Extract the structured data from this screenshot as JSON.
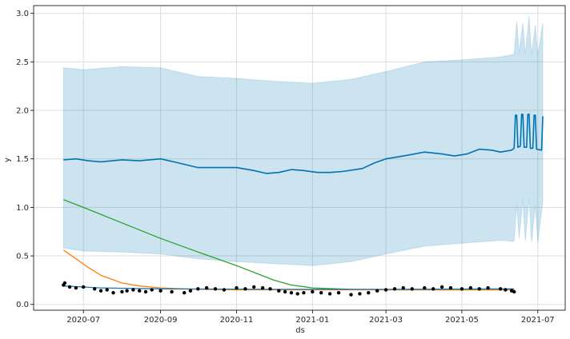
{
  "chart_data": {
    "type": "line",
    "xlabel": "ds",
    "ylabel": "y",
    "x_range": [
      "2020-05-22",
      "2021-07-23"
    ],
    "ylim": [
      -0.06,
      3.08
    ],
    "grid": true,
    "x_ticks": [
      {
        "date": "2020-07-01",
        "label": "2020-07"
      },
      {
        "date": "2020-09-01",
        "label": "2020-09"
      },
      {
        "date": "2020-11-01",
        "label": "2020-11"
      },
      {
        "date": "2021-01-01",
        "label": "2021-01"
      },
      {
        "date": "2021-03-01",
        "label": "2021-03"
      },
      {
        "date": "2021-05-01",
        "label": "2021-05"
      },
      {
        "date": "2021-07-01",
        "label": "2021-07"
      }
    ],
    "y_ticks": [
      {
        "value": 0.0,
        "label": "0.0"
      },
      {
        "value": 0.5,
        "label": "0.5"
      },
      {
        "value": 1.0,
        "label": "1.0"
      },
      {
        "value": 1.5,
        "label": "1.5"
      },
      {
        "value": 2.0,
        "label": "2.0"
      },
      {
        "value": 2.5,
        "label": "2.5"
      },
      {
        "value": 3.0,
        "label": "3.0"
      }
    ],
    "colors": {
      "forecast": "#0072B2",
      "interval": "#0072B2",
      "observed": "#000000",
      "orange_line": "#ff7f0e",
      "green_line": "#2ca02c",
      "blue_line": "#1f77b4",
      "grid": "#dddddd",
      "axes": "#000000"
    },
    "series": [
      {
        "role": "forecast",
        "points": [
          [
            "2020-06-15",
            1.49
          ],
          [
            "2020-06-25",
            1.5
          ],
          [
            "2020-07-05",
            1.48
          ],
          [
            "2020-07-15",
            1.47
          ],
          [
            "2020-08-01",
            1.49
          ],
          [
            "2020-08-15",
            1.48
          ],
          [
            "2020-09-01",
            1.5
          ],
          [
            "2020-09-15",
            1.46
          ],
          [
            "2020-10-01",
            1.41
          ],
          [
            "2020-10-15",
            1.41
          ],
          [
            "2020-11-01",
            1.41
          ],
          [
            "2020-11-15",
            1.38
          ],
          [
            "2020-11-25",
            1.35
          ],
          [
            "2020-12-05",
            1.36
          ],
          [
            "2020-12-15",
            1.39
          ],
          [
            "2020-12-25",
            1.38
          ],
          [
            "2021-01-05",
            1.36
          ],
          [
            "2021-01-15",
            1.36
          ],
          [
            "2021-01-25",
            1.37
          ],
          [
            "2021-02-10",
            1.4
          ],
          [
            "2021-02-20",
            1.46
          ],
          [
            "2021-03-01",
            1.5
          ],
          [
            "2021-03-15",
            1.53
          ],
          [
            "2021-04-01",
            1.57
          ],
          [
            "2021-04-15",
            1.55
          ],
          [
            "2021-04-25",
            1.53
          ],
          [
            "2021-05-05",
            1.55
          ],
          [
            "2021-05-15",
            1.6
          ],
          [
            "2021-05-25",
            1.59
          ],
          [
            "2021-06-01",
            1.57
          ],
          [
            "2021-06-10",
            1.59
          ],
          [
            "2021-06-12",
            1.61
          ],
          [
            "2021-06-13",
            1.95
          ],
          [
            "2021-06-14",
            1.95
          ],
          [
            "2021-06-15",
            1.62
          ],
          [
            "2021-06-17",
            1.63
          ],
          [
            "2021-06-18",
            1.96
          ],
          [
            "2021-06-19",
            1.96
          ],
          [
            "2021-06-20",
            1.62
          ],
          [
            "2021-06-22",
            1.62
          ],
          [
            "2021-06-23",
            1.96
          ],
          [
            "2021-06-24",
            1.96
          ],
          [
            "2021-06-25",
            1.61
          ],
          [
            "2021-06-27",
            1.61
          ],
          [
            "2021-06-28",
            1.95
          ],
          [
            "2021-06-29",
            1.95
          ],
          [
            "2021-06-30",
            1.6
          ],
          [
            "2021-07-04",
            1.59
          ],
          [
            "2021-07-05",
            1.94
          ]
        ]
      },
      {
        "role": "interval_upper",
        "points": [
          [
            "2020-06-15",
            2.44
          ],
          [
            "2020-07-01",
            2.42
          ],
          [
            "2020-08-01",
            2.45
          ],
          [
            "2020-09-01",
            2.44
          ],
          [
            "2020-10-01",
            2.35
          ],
          [
            "2020-11-01",
            2.33
          ],
          [
            "2020-12-01",
            2.3
          ],
          [
            "2021-01-01",
            2.28
          ],
          [
            "2021-02-01",
            2.32
          ],
          [
            "2021-03-01",
            2.4
          ],
          [
            "2021-04-01",
            2.5
          ],
          [
            "2021-05-01",
            2.52
          ],
          [
            "2021-06-01",
            2.55
          ],
          [
            "2021-06-12",
            2.58
          ],
          [
            "2021-06-14",
            2.92
          ],
          [
            "2021-06-16",
            2.6
          ],
          [
            "2021-06-19",
            2.9
          ],
          [
            "2021-06-21",
            2.58
          ],
          [
            "2021-06-24",
            2.97
          ],
          [
            "2021-06-26",
            2.57
          ],
          [
            "2021-06-29",
            2.88
          ],
          [
            "2021-07-01",
            2.57
          ],
          [
            "2021-07-05",
            2.9
          ]
        ]
      },
      {
        "role": "interval_lower",
        "points": [
          [
            "2020-06-15",
            0.58
          ],
          [
            "2020-07-01",
            0.55
          ],
          [
            "2020-08-01",
            0.54
          ],
          [
            "2020-09-01",
            0.52
          ],
          [
            "2020-10-01",
            0.47
          ],
          [
            "2020-11-01",
            0.44
          ],
          [
            "2020-12-01",
            0.42
          ],
          [
            "2021-01-01",
            0.4
          ],
          [
            "2021-02-01",
            0.44
          ],
          [
            "2021-03-01",
            0.52
          ],
          [
            "2021-04-01",
            0.6
          ],
          [
            "2021-05-01",
            0.63
          ],
          [
            "2021-06-01",
            0.66
          ],
          [
            "2021-06-12",
            0.65
          ],
          [
            "2021-06-14",
            1.03
          ],
          [
            "2021-06-16",
            0.68
          ],
          [
            "2021-06-19",
            1.08
          ],
          [
            "2021-06-21",
            0.65
          ],
          [
            "2021-06-24",
            1.1
          ],
          [
            "2021-06-26",
            0.64
          ],
          [
            "2021-06-29",
            1.02
          ],
          [
            "2021-07-01",
            0.64
          ],
          [
            "2021-07-05",
            1.06
          ]
        ]
      },
      {
        "role": "orange_line",
        "points": [
          [
            "2020-06-15",
            0.56
          ],
          [
            "2020-06-25",
            0.47
          ],
          [
            "2020-07-05",
            0.38
          ],
          [
            "2020-07-15",
            0.3
          ],
          [
            "2020-08-01",
            0.22
          ],
          [
            "2020-08-15",
            0.19
          ],
          [
            "2020-09-01",
            0.17
          ],
          [
            "2020-10-01",
            0.155
          ],
          [
            "2020-11-01",
            0.15
          ],
          [
            "2021-01-01",
            0.15
          ],
          [
            "2021-03-01",
            0.15
          ],
          [
            "2021-06-12",
            0.15
          ]
        ]
      },
      {
        "role": "green_line",
        "points": [
          [
            "2020-06-15",
            1.08
          ],
          [
            "2020-07-01",
            1.0
          ],
          [
            "2020-08-01",
            0.84
          ],
          [
            "2020-09-01",
            0.68
          ],
          [
            "2020-10-01",
            0.54
          ],
          [
            "2020-11-01",
            0.4
          ],
          [
            "2020-12-01",
            0.25
          ],
          [
            "2020-12-15",
            0.2
          ],
          [
            "2021-01-01",
            0.17
          ],
          [
            "2021-02-01",
            0.155
          ],
          [
            "2021-03-01",
            0.15
          ],
          [
            "2021-06-12",
            0.15
          ]
        ]
      },
      {
        "role": "blue_line",
        "points": [
          [
            "2020-06-15",
            0.19
          ],
          [
            "2020-07-15",
            0.17
          ],
          [
            "2020-09-01",
            0.16
          ],
          [
            "2020-12-01",
            0.155
          ],
          [
            "2021-03-01",
            0.155
          ],
          [
            "2021-06-12",
            0.16
          ]
        ]
      },
      {
        "role": "observed",
        "points": [
          [
            "2020-06-15",
            0.2
          ],
          [
            "2020-06-16",
            0.22
          ],
          [
            "2020-06-20",
            0.18
          ],
          [
            "2020-06-25",
            0.17
          ],
          [
            "2020-07-01",
            0.18
          ],
          [
            "2020-07-10",
            0.16
          ],
          [
            "2020-07-15",
            0.14
          ],
          [
            "2020-07-20",
            0.15
          ],
          [
            "2020-07-25",
            0.12
          ],
          [
            "2020-08-01",
            0.13
          ],
          [
            "2020-08-05",
            0.14
          ],
          [
            "2020-08-10",
            0.15
          ],
          [
            "2020-08-15",
            0.14
          ],
          [
            "2020-08-20",
            0.13
          ],
          [
            "2020-08-25",
            0.15
          ],
          [
            "2020-09-01",
            0.14
          ],
          [
            "2020-09-10",
            0.13
          ],
          [
            "2020-09-20",
            0.12
          ],
          [
            "2020-09-25",
            0.14
          ],
          [
            "2020-10-01",
            0.16
          ],
          [
            "2020-10-08",
            0.17
          ],
          [
            "2020-10-15",
            0.16
          ],
          [
            "2020-10-22",
            0.15
          ],
          [
            "2020-11-01",
            0.17
          ],
          [
            "2020-11-08",
            0.16
          ],
          [
            "2020-11-15",
            0.18
          ],
          [
            "2020-11-22",
            0.17
          ],
          [
            "2020-11-28",
            0.16
          ],
          [
            "2020-12-05",
            0.14
          ],
          [
            "2020-12-10",
            0.13
          ],
          [
            "2020-12-15",
            0.12
          ],
          [
            "2020-12-20",
            0.11
          ],
          [
            "2020-12-25",
            0.12
          ],
          [
            "2021-01-01",
            0.13
          ],
          [
            "2021-01-08",
            0.12
          ],
          [
            "2021-01-15",
            0.11
          ],
          [
            "2021-01-22",
            0.12
          ],
          [
            "2021-02-01",
            0.1
          ],
          [
            "2021-02-08",
            0.11
          ],
          [
            "2021-02-15",
            0.12
          ],
          [
            "2021-02-22",
            0.14
          ],
          [
            "2021-03-01",
            0.15
          ],
          [
            "2021-03-08",
            0.16
          ],
          [
            "2021-03-15",
            0.17
          ],
          [
            "2021-03-22",
            0.16
          ],
          [
            "2021-04-01",
            0.17
          ],
          [
            "2021-04-08",
            0.16
          ],
          [
            "2021-04-15",
            0.18
          ],
          [
            "2021-04-22",
            0.17
          ],
          [
            "2021-05-01",
            0.16
          ],
          [
            "2021-05-08",
            0.17
          ],
          [
            "2021-05-15",
            0.16
          ],
          [
            "2021-05-22",
            0.17
          ],
          [
            "2021-06-01",
            0.16
          ],
          [
            "2021-06-05",
            0.15
          ],
          [
            "2021-06-10",
            0.14
          ],
          [
            "2021-06-12",
            0.13
          ]
        ]
      }
    ]
  }
}
